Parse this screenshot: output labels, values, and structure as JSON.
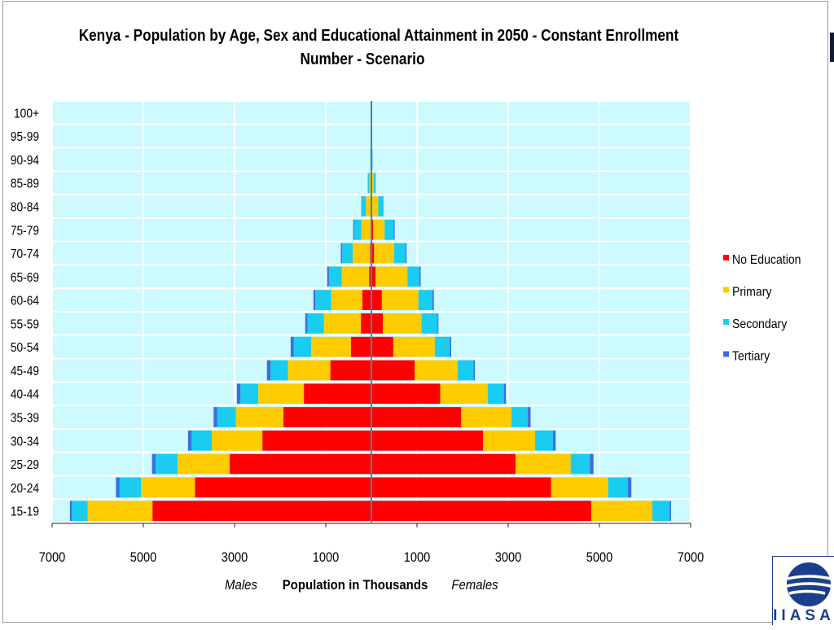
{
  "title_line1": "Kenya - Population by Age, Sex and Educational Attainment in 2050 - Constant Enrollment",
  "title_line2": "Number - Scenario",
  "xlabel": "Population in Thousands",
  "side_left": "Males",
  "side_right": "Females",
  "logo_text": "IIASA",
  "colors": {
    "plot_bg": "#ccfaff",
    "grid": "#ffffff",
    "No Education": "#ff0000",
    "Primary": "#ffcc00",
    "Secondary": "#19ccf0",
    "Tertiary": "#3b6fe0",
    "axis": "#4a7fb5",
    "logo": "#1b3f8c"
  },
  "chart_data": {
    "type": "bar",
    "orientation": "horizontal-population-pyramid",
    "title": "Kenya - Population by Age, Sex and Educational Attainment in 2050 - Constant Enrollment Number - Scenario",
    "xlabel": "Population in Thousands",
    "xticks": [
      "7000",
      "5000",
      "3000",
      "1000",
      "1000",
      "3000",
      "5000",
      "7000"
    ],
    "xlim": [
      -7000,
      7000
    ],
    "categories": [
      "15-19",
      "20-24",
      "25-29",
      "30-34",
      "35-39",
      "40-44",
      "45-49",
      "50-54",
      "55-59",
      "60-64",
      "65-69",
      "70-74",
      "75-79",
      "80-84",
      "85-89",
      "90-94",
      "95-99",
      "100+"
    ],
    "legend": [
      "No Education",
      "Primary",
      "Secondary",
      "Tertiary"
    ],
    "legend_position": "right",
    "males": {
      "No Education": [
        4800,
        3870,
        3110,
        2390,
        1930,
        1480,
        900,
        450,
        230,
        200,
        50,
        30,
        20,
        10,
        5,
        2,
        1,
        0
      ],
      "Primary": [
        1420,
        1180,
        1140,
        1110,
        1040,
        1000,
        930,
        870,
        810,
        680,
        600,
        380,
        200,
        110,
        40,
        10,
        5,
        2
      ],
      "Secondary": [
        350,
        470,
        480,
        440,
        410,
        390,
        380,
        380,
        360,
        350,
        280,
        230,
        160,
        90,
        30,
        8,
        3,
        1
      ],
      "Tertiary": [
        40,
        80,
        80,
        80,
        80,
        80,
        80,
        70,
        50,
        40,
        40,
        30,
        20,
        10,
        5,
        2,
        1,
        0
      ]
    },
    "females": {
      "No Education": [
        4820,
        3940,
        3160,
        2450,
        1970,
        1510,
        950,
        480,
        250,
        230,
        90,
        60,
        40,
        20,
        8,
        3,
        1,
        0
      ],
      "Primary": [
        1340,
        1250,
        1210,
        1140,
        1100,
        1040,
        940,
        910,
        850,
        800,
        700,
        440,
        250,
        130,
        40,
        10,
        4,
        2
      ],
      "Secondary": [
        380,
        430,
        420,
        390,
        360,
        360,
        350,
        330,
        350,
        310,
        260,
        250,
        200,
        100,
        40,
        10,
        4,
        2
      ],
      "Tertiary": [
        30,
        80,
        80,
        60,
        60,
        40,
        30,
        30,
        20,
        30,
        30,
        20,
        20,
        10,
        5,
        3,
        1,
        0
      ]
    }
  }
}
